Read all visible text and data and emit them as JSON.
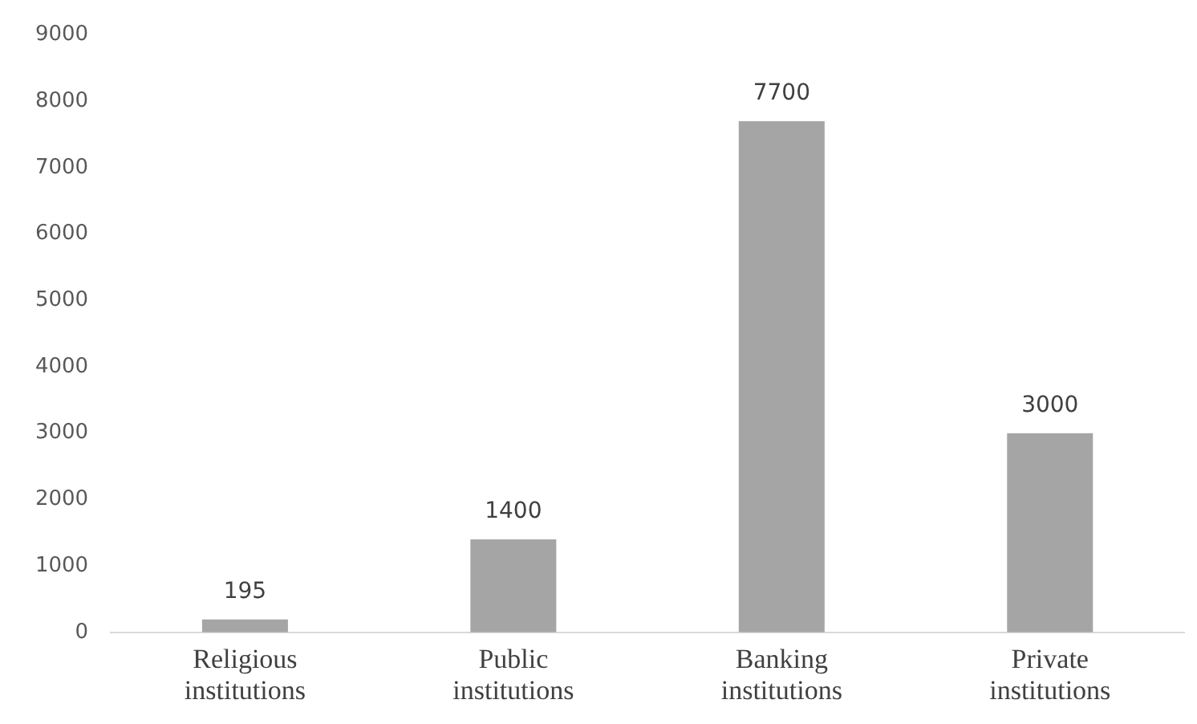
{
  "chart_data": {
    "type": "bar",
    "categories": [
      "Religious institutions",
      "Public institutions",
      "Banking institutions",
      "Private institutions"
    ],
    "values": [
      195,
      1400,
      7700,
      3000
    ],
    "color": "#a5a5a5",
    "ylim": [
      0,
      9000
    ],
    "yticks": [
      0,
      1000,
      2000,
      3000,
      4000,
      5000,
      6000,
      7000,
      8000,
      9000
    ],
    "grid": false,
    "legend": false,
    "data_labels": true
  }
}
